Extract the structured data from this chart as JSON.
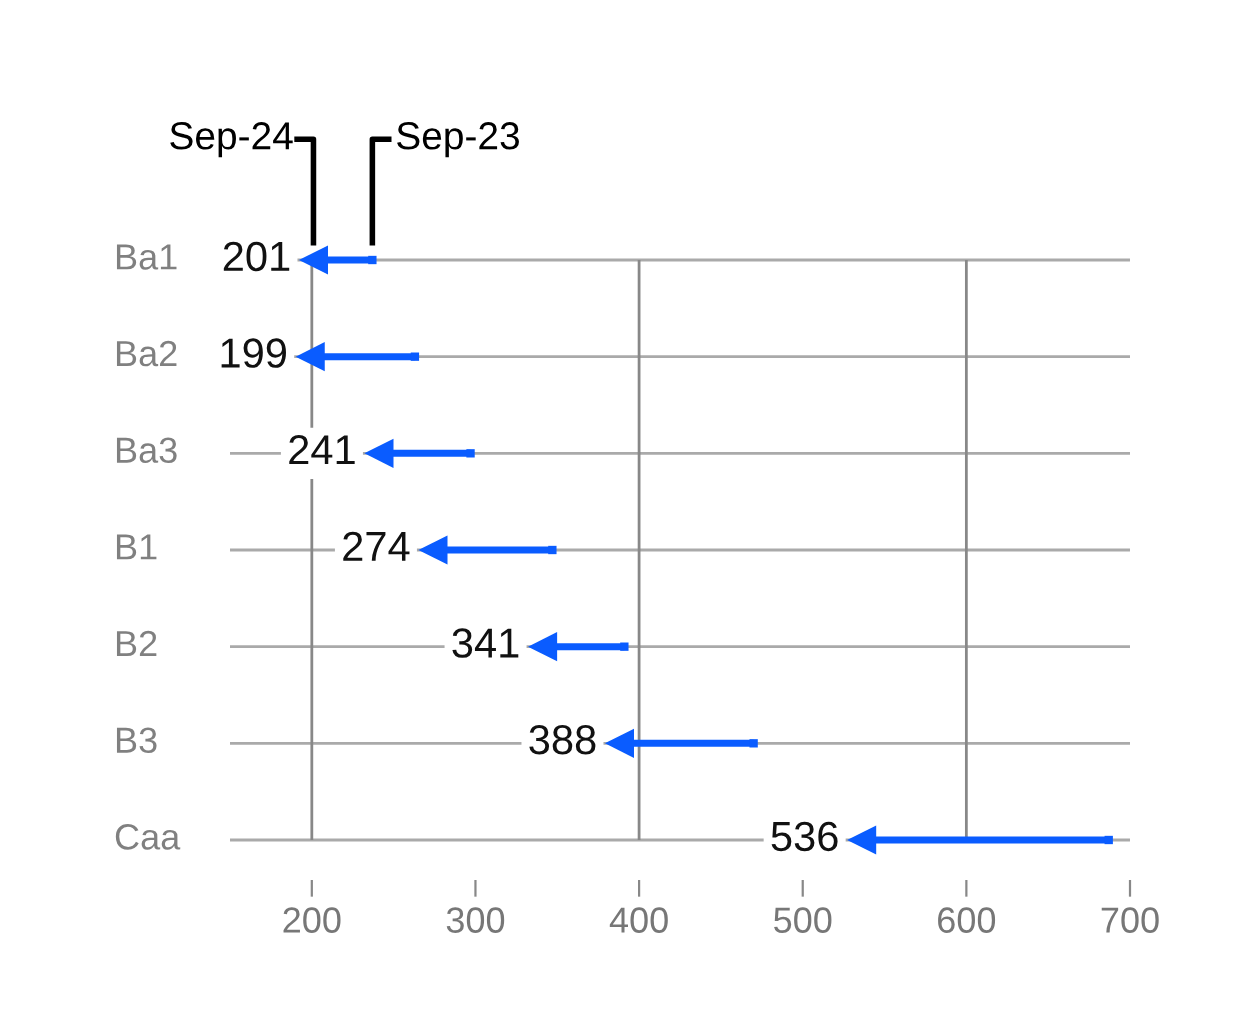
{
  "chart_data": {
    "type": "scatter",
    "orientation": "horizontal",
    "categories": [
      "Ba1",
      "Ba2",
      "Ba3",
      "B1",
      "B2",
      "B3",
      "Caa"
    ],
    "series": [
      {
        "name": "Sep-23",
        "color": "#0a5cff",
        "marker": "square",
        "values": [
          237,
          263,
          297,
          347,
          391,
          470,
          687
        ]
      },
      {
        "name": "Sep-24",
        "color": "#0a5cff",
        "marker": "triangle",
        "values": [
          201,
          199,
          241,
          274,
          341,
          388,
          536
        ],
        "value_labels": [
          "201",
          "199",
          "241",
          "274",
          "341",
          "388",
          "536"
        ]
      }
    ],
    "xlim": [
      150,
      700
    ],
    "xticks": [
      200,
      300,
      400,
      500,
      600,
      700
    ],
    "grid": "y",
    "legend": "top left",
    "ref_lines": [
      {
        "axis": "x",
        "value": 200,
        "color": "#888888"
      },
      {
        "axis": "x",
        "value": 400,
        "color": "#888888"
      },
      {
        "axis": "x",
        "value": 600,
        "color": "#888888"
      }
    ]
  }
}
